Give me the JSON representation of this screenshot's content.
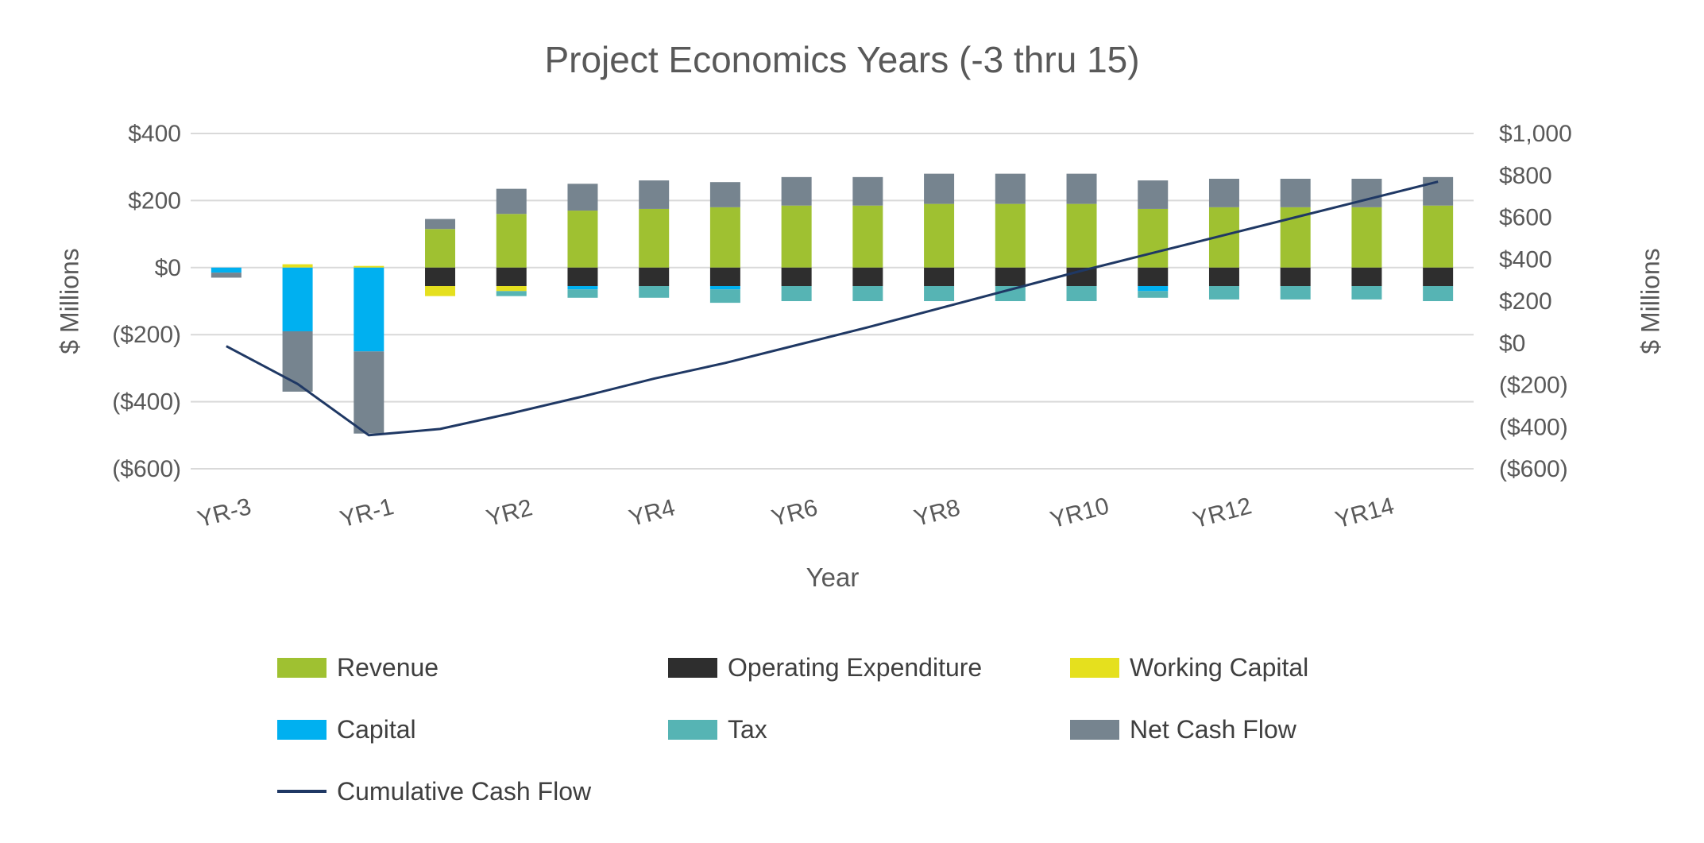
{
  "chart_data": {
    "type": "bar",
    "subtype": "stacked-bar-with-line-overlay",
    "title": "Project Economics Years (-3 thru 15)",
    "grid": true,
    "legend_position": "bottom",
    "categories": [
      "YR-3",
      "YR-2",
      "YR-1",
      "YR1",
      "YR2",
      "YR3",
      "YR4",
      "YR5",
      "YR6",
      "YR7",
      "YR8",
      "YR9",
      "YR10",
      "YR11",
      "YR12",
      "YR13",
      "YR14",
      "YR15"
    ],
    "series": [
      {
        "name": "Revenue",
        "color": "#9FC131",
        "values": [
          0,
          0,
          0,
          115,
          160,
          170,
          175,
          180,
          185,
          185,
          190,
          190,
          190,
          175,
          180,
          180,
          180,
          185
        ]
      },
      {
        "name": "Operating Expenditure",
        "color": "#2E2E2E",
        "values": [
          0,
          0,
          0,
          -55,
          -55,
          -55,
          -55,
          -55,
          -55,
          -55,
          -55,
          -55,
          -55,
          -55,
          -55,
          -55,
          -55,
          -55
        ]
      },
      {
        "name": "Working Capital",
        "color": "#E5E01E",
        "values": [
          0,
          10,
          5,
          -30,
          -15,
          0,
          0,
          0,
          0,
          0,
          0,
          0,
          0,
          0,
          0,
          0,
          0,
          0
        ]
      },
      {
        "name": "Capital",
        "color": "#00B0F0",
        "values": [
          -15,
          -190,
          -250,
          0,
          0,
          -10,
          0,
          -10,
          0,
          0,
          0,
          0,
          0,
          -15,
          0,
          0,
          0,
          0
        ]
      },
      {
        "name": "Tax",
        "color": "#56B4B4",
        "values": [
          0,
          0,
          0,
          0,
          -15,
          -25,
          -35,
          -40,
          -45,
          -45,
          -45,
          -45,
          -45,
          -20,
          -40,
          -40,
          -40,
          -45
        ]
      },
      {
        "name": "Net Cash Flow",
        "color": "#76848F",
        "values": [
          -15,
          -180,
          -245,
          30,
          75,
          80,
          85,
          75,
          85,
          85,
          90,
          90,
          90,
          85,
          85,
          85,
          85,
          85
        ]
      }
    ],
    "line_series": {
      "name": "Cumulative Cash Flow",
      "color": "#1F3864",
      "axis": "right",
      "values": [
        -15,
        -195,
        -440,
        -410,
        -335,
        -255,
        -170,
        -95,
        -10,
        75,
        165,
        255,
        345,
        430,
        515,
        600,
        685,
        770
      ]
    },
    "left_axis": {
      "title": "$ Millions",
      "max": 400,
      "min": -600,
      "ticks": [
        "$400",
        "$200",
        "$0",
        "($200)",
        "($400)",
        "($600)"
      ],
      "tick_values": [
        400,
        200,
        0,
        -200,
        -400,
        -600
      ]
    },
    "right_axis": {
      "title": "$ Millions",
      "max": 1000,
      "min": -600,
      "ticks": [
        "$1,000",
        "$800",
        "$600",
        "$400",
        "$200",
        "$0",
        "($200)",
        "($400)",
        "($600)"
      ],
      "tick_values": [
        1000,
        800,
        600,
        400,
        200,
        0,
        -200,
        -400,
        -600
      ]
    },
    "x_axis": {
      "title": "Year",
      "tick_labels": [
        "YR-3",
        "YR-1",
        "YR2",
        "YR4",
        "YR6",
        "YR8",
        "YR10",
        "YR12",
        "YR14"
      ],
      "tick_indices": [
        0,
        2,
        4,
        6,
        8,
        10,
        12,
        14,
        16
      ]
    }
  },
  "legend": {
    "items": [
      {
        "label": "Revenue",
        "color": "#9FC131",
        "swatch": "box"
      },
      {
        "label": "Operating Expenditure",
        "color": "#2E2E2E",
        "swatch": "box"
      },
      {
        "label": "Working Capital",
        "color": "#E5E01E",
        "swatch": "box"
      },
      {
        "label": "Capital",
        "color": "#00B0F0",
        "swatch": "box"
      },
      {
        "label": "Tax",
        "color": "#56B4B4",
        "swatch": "box"
      },
      {
        "label": "Net Cash Flow",
        "color": "#76848F",
        "swatch": "box"
      },
      {
        "label": "Cumulative Cash Flow",
        "color": "#1F3864",
        "swatch": "line"
      }
    ]
  },
  "colors": {
    "grid": "#D9D9D9",
    "axis_text": "#595959",
    "legend_text": "#3F3F3F",
    "background": "#FFFFFF"
  }
}
